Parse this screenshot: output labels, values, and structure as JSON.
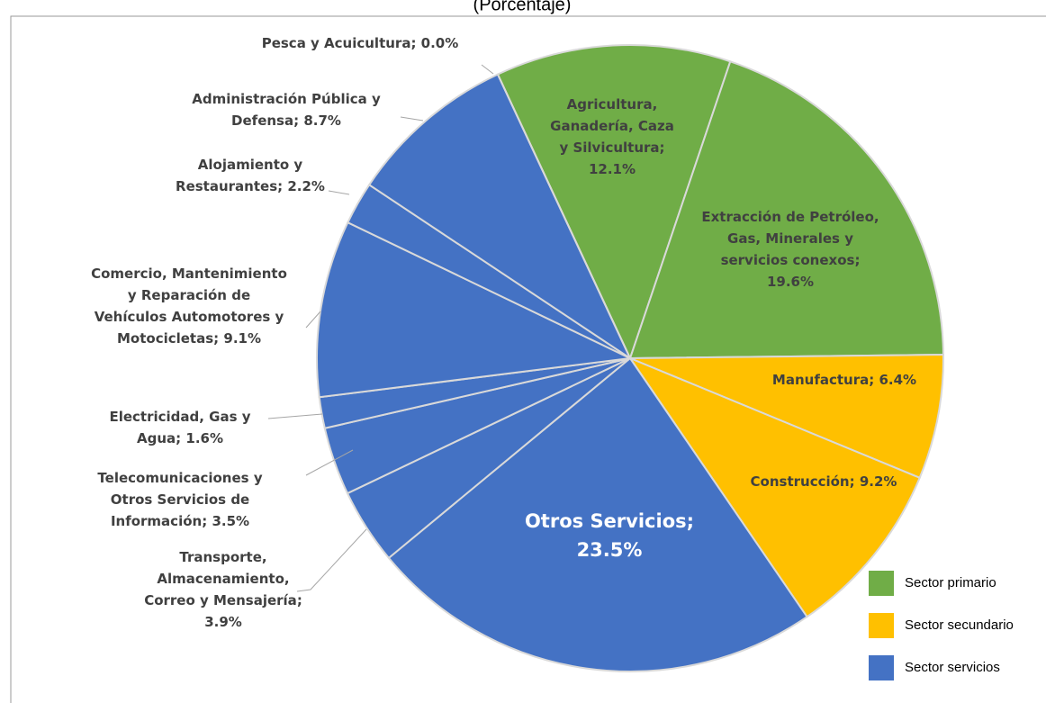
{
  "chart_data": {
    "type": "pie",
    "title": "(Porcentaje)",
    "categories": [
      "Agricultura, Ganadería, Caza y Silvicultura",
      "Extracción de Petróleo, Gas, Minerales y servicios conexos",
      "Manufactura",
      "Construcción",
      "Otros Servicios",
      "Transporte, Almacenamiento, Correo y Mensajería",
      "Telecomunicaciones y Otros Servicios de Información",
      "Electricidad, Gas y Agua",
      "Comercio, Mantenimiento y Reparación de Vehículos Automotores y Motocicletas",
      "Alojamiento y Restaurantes",
      "Administración Pública y Defensa",
      "Pesca y Acuicultura"
    ],
    "values": [
      12.1,
      19.6,
      6.4,
      9.2,
      23.5,
      3.9,
      3.5,
      1.6,
      9.1,
      2.2,
      8.7,
      0.0
    ],
    "value_labels": [
      "12.1%",
      "19.6%",
      "6.4%",
      "9.2%",
      "23.5%",
      "3.9%",
      "3.5%",
      "1.6%",
      "9.1%",
      "2.2%",
      "8.7%",
      "0.0%"
    ],
    "colors": [
      "#70ad47",
      "#70ad47",
      "#ffc000",
      "#ffc000",
      "#4472c4",
      "#4472c4",
      "#4472c4",
      "#4472c4",
      "#4472c4",
      "#4472c4",
      "#4472c4",
      "#70ad47"
    ],
    "legend": [
      {
        "name": "Sector primario",
        "color": "#70ad47"
      },
      {
        "name": "Sector secundario",
        "color": "#ffc000"
      },
      {
        "name": "Sector servicios",
        "color": "#4472c4"
      }
    ]
  }
}
